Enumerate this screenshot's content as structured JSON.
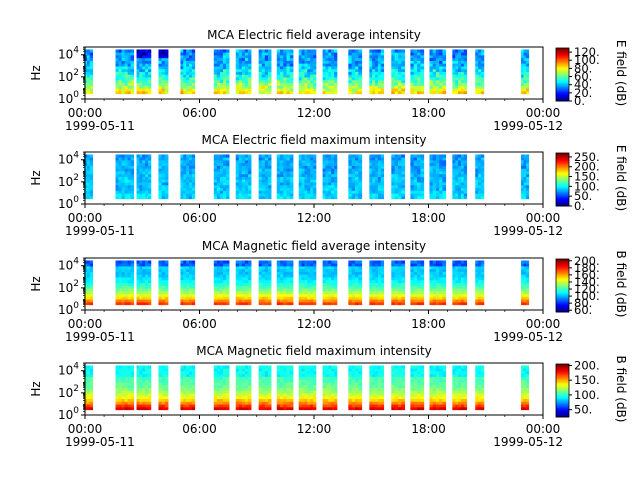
{
  "chart_data": [
    {
      "type": "heatmap",
      "title": "MCA  Electric field average intensity",
      "ylabel": "Hz",
      "yscale": "log",
      "ylim": [
        1,
        50000
      ],
      "yticks": [
        {
          "v": 1,
          "b": "10",
          "e": "0"
        },
        {
          "v": 100,
          "b": "10",
          "e": "2"
        },
        {
          "v": 10000,
          "b": "10",
          "e": "4"
        }
      ],
      "xlim": [
        0,
        24
      ],
      "xticks": [
        {
          "v": 0,
          "l": "00:00"
        },
        {
          "v": 6,
          "l": "06:00"
        },
        {
          "v": 12,
          "l": "12:00"
        },
        {
          "v": 18,
          "l": "18:00"
        },
        {
          "v": 24,
          "l": "00:00"
        }
      ],
      "date_start": "1999-05-11",
      "date_end": "1999-05-12",
      "colorbar": {
        "label": "E field (dB)",
        "range": [
          0,
          130
        ],
        "ticks": [
          "0.",
          "20.",
          "40.",
          "60.",
          "80.",
          "100.",
          "120."
        ]
      },
      "pattern": "e_avg"
    },
    {
      "type": "heatmap",
      "title": "MCA  Electric field maximum intensity",
      "ylabel": "Hz",
      "yscale": "log",
      "ylim": [
        1,
        50000
      ],
      "yticks": [
        {
          "v": 1,
          "b": "10",
          "e": "0"
        },
        {
          "v": 100,
          "b": "10",
          "e": "2"
        },
        {
          "v": 10000,
          "b": "10",
          "e": "4"
        }
      ],
      "xlim": [
        0,
        24
      ],
      "xticks": [
        {
          "v": 0,
          "l": "00:00"
        },
        {
          "v": 6,
          "l": "06:00"
        },
        {
          "v": 12,
          "l": "12:00"
        },
        {
          "v": 18,
          "l": "18:00"
        },
        {
          "v": 24,
          "l": "00:00"
        }
      ],
      "date_start": "1999-05-11",
      "date_end": "1999-05-12",
      "colorbar": {
        "label": "E field (dB)",
        "range": [
          0,
          270
        ],
        "ticks": [
          "0.",
          "50.",
          "100.",
          "150.",
          "200.",
          "250."
        ]
      },
      "pattern": "e_max"
    },
    {
      "type": "heatmap",
      "title": "MCA  Magnetic field average intensity",
      "ylabel": "Hz",
      "yscale": "log",
      "ylim": [
        1,
        50000
      ],
      "yticks": [
        {
          "v": 1,
          "b": "10",
          "e": "0"
        },
        {
          "v": 100,
          "b": "10",
          "e": "2"
        },
        {
          "v": 10000,
          "b": "10",
          "e": "4"
        }
      ],
      "xlim": [
        0,
        24
      ],
      "xticks": [
        {
          "v": 0,
          "l": "00:00"
        },
        {
          "v": 6,
          "l": "06:00"
        },
        {
          "v": 12,
          "l": "12:00"
        },
        {
          "v": 18,
          "l": "18:00"
        },
        {
          "v": 24,
          "l": "00:00"
        }
      ],
      "date_start": "1999-05-11",
      "date_end": "1999-05-12",
      "colorbar": {
        "label": "B field (dB)",
        "range": [
          55,
          205
        ],
        "ticks": [
          "60.",
          "80.",
          "100.",
          "120.",
          "140.",
          "160.",
          "180.",
          "200."
        ]
      },
      "pattern": "b_avg"
    },
    {
      "type": "heatmap",
      "title": "MCA  Magnetic field maximum intensity",
      "ylabel": "Hz",
      "yscale": "log",
      "ylim": [
        1,
        50000
      ],
      "yticks": [
        {
          "v": 1,
          "b": "10",
          "e": "0"
        },
        {
          "v": 100,
          "b": "10",
          "e": "2"
        },
        {
          "v": 10000,
          "b": "10",
          "e": "4"
        }
      ],
      "xlim": [
        0,
        24
      ],
      "xticks": [
        {
          "v": 0,
          "l": "00:00"
        },
        {
          "v": 6,
          "l": "06:00"
        },
        {
          "v": 12,
          "l": "12:00"
        },
        {
          "v": 18,
          "l": "18:00"
        },
        {
          "v": 24,
          "l": "00:00"
        }
      ],
      "date_start": "1999-05-11",
      "date_end": "1999-05-12",
      "colorbar": {
        "label": "B field (dB)",
        "range": [
          25,
          205
        ],
        "ticks": [
          "50.",
          "100.",
          "150.",
          "200."
        ]
      },
      "pattern": "b_max"
    }
  ],
  "data_segments_hours": [
    [
      -0.05,
      0.4
    ],
    [
      1.6,
      2.55
    ],
    [
      2.7,
      3.45
    ],
    [
      3.85,
      4.35
    ],
    [
      5.0,
      5.75
    ],
    [
      6.75,
      7.55
    ],
    [
      7.9,
      8.7
    ],
    [
      9.1,
      9.75
    ],
    [
      10.05,
      10.9
    ],
    [
      11.2,
      12.1
    ],
    [
      12.45,
      13.2
    ],
    [
      13.8,
      14.5
    ],
    [
      14.9,
      15.65
    ],
    [
      16.05,
      16.75
    ],
    [
      17.05,
      17.75
    ],
    [
      18.05,
      18.9
    ],
    [
      19.25,
      20.0
    ],
    [
      20.45,
      20.9
    ],
    [
      22.85,
      23.25
    ]
  ]
}
